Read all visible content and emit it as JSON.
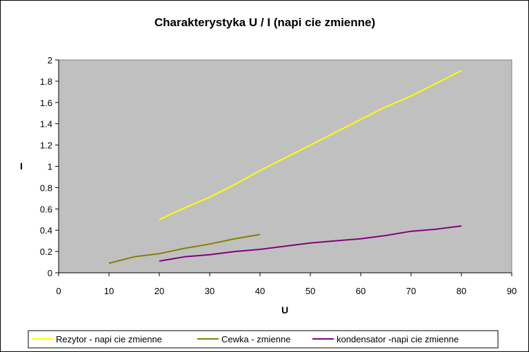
{
  "chart_data": {
    "type": "line",
    "title": "Charakterystyka U / I (napi  cie zmienne)",
    "xlabel": "U",
    "ylabel": "I",
    "xlim": [
      0,
      90
    ],
    "ylim": [
      0,
      2
    ],
    "xticks": [
      "0",
      "10",
      "20",
      "30",
      "40",
      "50",
      "60",
      "70",
      "80",
      "90"
    ],
    "yticks": [
      "0",
      "0.2",
      "0.4",
      "0.6",
      "0.8",
      "1",
      "1.2",
      "1.4",
      "1.6",
      "1.8",
      "2"
    ],
    "grid": false,
    "plot_background": "#c0c0c0",
    "legend_position": "bottom",
    "series": [
      {
        "name": "Rezytor - napi  cie zmienne",
        "color": "#ffff00",
        "x": [
          20,
          25,
          30,
          35,
          40,
          45,
          50,
          55,
          60,
          65,
          70,
          75,
          80
        ],
        "y": [
          0.5,
          0.61,
          0.71,
          0.83,
          0.96,
          1.08,
          1.2,
          1.32,
          1.44,
          1.56,
          1.66,
          1.78,
          1.9
        ]
      },
      {
        "name": "Cewka - zmienne",
        "color": "#808000",
        "x": [
          10,
          15,
          20,
          25,
          30,
          35,
          40
        ],
        "y": [
          0.09,
          0.15,
          0.18,
          0.23,
          0.27,
          0.32,
          0.36
        ]
      },
      {
        "name": "kondensator -napi  cie zmienne",
        "color": "#800080",
        "x": [
          20,
          25,
          30,
          35,
          40,
          45,
          50,
          55,
          60,
          65,
          70,
          75,
          80
        ],
        "y": [
          0.11,
          0.15,
          0.17,
          0.2,
          0.22,
          0.25,
          0.28,
          0.3,
          0.32,
          0.35,
          0.39,
          0.41,
          0.44
        ]
      }
    ]
  }
}
